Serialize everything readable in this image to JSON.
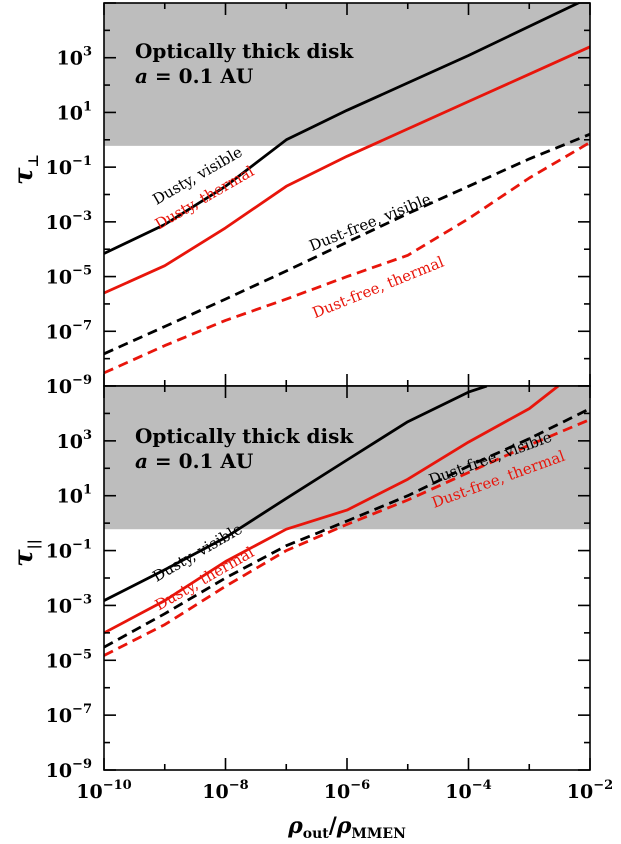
{
  "chart_data": [
    {
      "type": "line",
      "panel": "top",
      "ylabel": "τ⊥",
      "xlabel": "",
      "xscale": "log",
      "yscale": "log",
      "xlim": [
        1e-10,
        0.01
      ],
      "ylim": [
        1e-09,
        100000.0
      ],
      "shaded_region": {
        "y_from": 0.6,
        "y_to": 100000.0,
        "color": "#bdbdbd"
      },
      "annotation_lines": [
        "Optically thick disk",
        "a = 0.1 AU"
      ],
      "series": [
        {
          "name": "Dusty, visible",
          "color": "#000000",
          "dash": "solid",
          "x": [
            1e-10,
            1e-09,
            1e-08,
            1e-07,
            1e-06,
            1e-05,
            0.0001,
            0.001,
            0.01
          ],
          "y": [
            7e-05,
            0.0008,
            0.02,
            1.0,
            12,
            120,
            1200,
            14000.0,
            160000.0
          ]
        },
        {
          "name": "Dusty, thermal",
          "color": "#e8150b",
          "dash": "solid",
          "x": [
            1e-10,
            1e-09,
            1e-08,
            1e-07,
            1e-06,
            1e-05,
            0.0001,
            0.001,
            0.01
          ],
          "y": [
            2.5e-06,
            2.5e-05,
            0.0006,
            0.02,
            0.25,
            2.5,
            25,
            250,
            2500
          ]
        },
        {
          "name": "Dust-free, visible",
          "color": "#000000",
          "dash": "dashed",
          "x": [
            1e-10,
            1e-09,
            1e-08,
            1e-07,
            1e-06,
            1e-05,
            0.0001,
            0.001,
            0.01
          ],
          "y": [
            1.5e-08,
            1.5e-07,
            1.5e-06,
            1.6e-05,
            0.00018,
            0.002,
            0.02,
            0.2,
            1.6
          ]
        },
        {
          "name": "Dust-free, thermal",
          "color": "#e8150b",
          "dash": "dashed",
          "x": [
            1e-10,
            1e-09,
            1e-08,
            1e-07,
            1e-06,
            1e-05,
            0.0001,
            0.001,
            0.01
          ],
          "y": [
            3e-09,
            3e-08,
            2.5e-07,
            1.5e-06,
            1e-05,
            6e-05,
            0.0013,
            0.04,
            0.8
          ]
        }
      ],
      "curve_labels": [
        {
          "text": "Dusty, visible",
          "color": "#000000"
        },
        {
          "text": "Dusty, thermal",
          "color": "#e8150b"
        },
        {
          "text": "Dust-free, visible",
          "color": "#000000"
        },
        {
          "text": "Dust-free, thermal",
          "color": "#e8150b"
        }
      ]
    },
    {
      "type": "line",
      "panel": "bottom",
      "ylabel": "τ||",
      "xlabel": "ρout/ρMMEN",
      "xscale": "log",
      "yscale": "log",
      "xlim": [
        1e-10,
        0.01
      ],
      "ylim": [
        1e-09,
        100000.0
      ],
      "shaded_region": {
        "y_from": 0.6,
        "y_to": 100000.0,
        "color": "#bdbdbd"
      },
      "annotation_lines": [
        "Optically thick disk",
        "a = 0.1 AU"
      ],
      "series": [
        {
          "name": "Dusty, visible",
          "color": "#000000",
          "dash": "solid",
          "x": [
            1e-10,
            1e-09,
            1e-08,
            1e-07,
            1e-06,
            1e-05,
            0.0001,
            0.0002
          ],
          "y": [
            0.0015,
            0.02,
            0.3,
            8,
            200,
            5000,
            60000.0,
            100000.0
          ]
        },
        {
          "name": "Dusty, thermal",
          "color": "#e8150b",
          "dash": "solid",
          "x": [
            1e-10,
            1e-09,
            1e-08,
            1e-07,
            1e-06,
            1e-05,
            0.0001,
            0.001,
            0.003
          ],
          "y": [
            0.0001,
            0.0015,
            0.04,
            0.6,
            3,
            40,
            900,
            15000.0,
            100000.0
          ]
        },
        {
          "name": "Dust-free, visible",
          "color": "#000000",
          "dash": "dashed",
          "x": [
            1e-10,
            1e-09,
            1e-08,
            1e-07,
            1e-06,
            1e-05,
            0.0001,
            0.001,
            0.01
          ],
          "y": [
            3e-05,
            0.0005,
            0.01,
            0.15,
            1.2,
            10,
            120,
            1200,
            15000.0
          ]
        },
        {
          "name": "Dust-free, thermal",
          "color": "#e8150b",
          "dash": "dashed",
          "x": [
            1e-10,
            1e-09,
            1e-08,
            1e-07,
            1e-06,
            1e-05,
            0.0001,
            0.001,
            0.01
          ],
          "y": [
            1.5e-05,
            0.0002,
            0.005,
            0.1,
            0.9,
            7,
            70,
            700,
            6000
          ]
        }
      ],
      "curve_labels": [
        {
          "text": "Dusty, visible",
          "color": "#000000"
        },
        {
          "text": "Dusty, thermal",
          "color": "#e8150b"
        },
        {
          "text": "Dust-free, visible",
          "color": "#000000"
        },
        {
          "text": "Dust-free, thermal",
          "color": "#e8150b"
        }
      ]
    }
  ],
  "x_ticks": [
    {
      "base": "10",
      "exp": "−10"
    },
    {
      "base": "10",
      "exp": "−8"
    },
    {
      "base": "10",
      "exp": "−6"
    },
    {
      "base": "10",
      "exp": "−4"
    },
    {
      "base": "10",
      "exp": "−2"
    }
  ],
  "y_ticks": [
    {
      "base": "10",
      "exp": "3"
    },
    {
      "base": "10",
      "exp": "1"
    },
    {
      "base": "10",
      "exp": "−1"
    },
    {
      "base": "10",
      "exp": "−3"
    },
    {
      "base": "10",
      "exp": "−5"
    },
    {
      "base": "10",
      "exp": "−7"
    },
    {
      "base": "10",
      "exp": "−9"
    }
  ]
}
